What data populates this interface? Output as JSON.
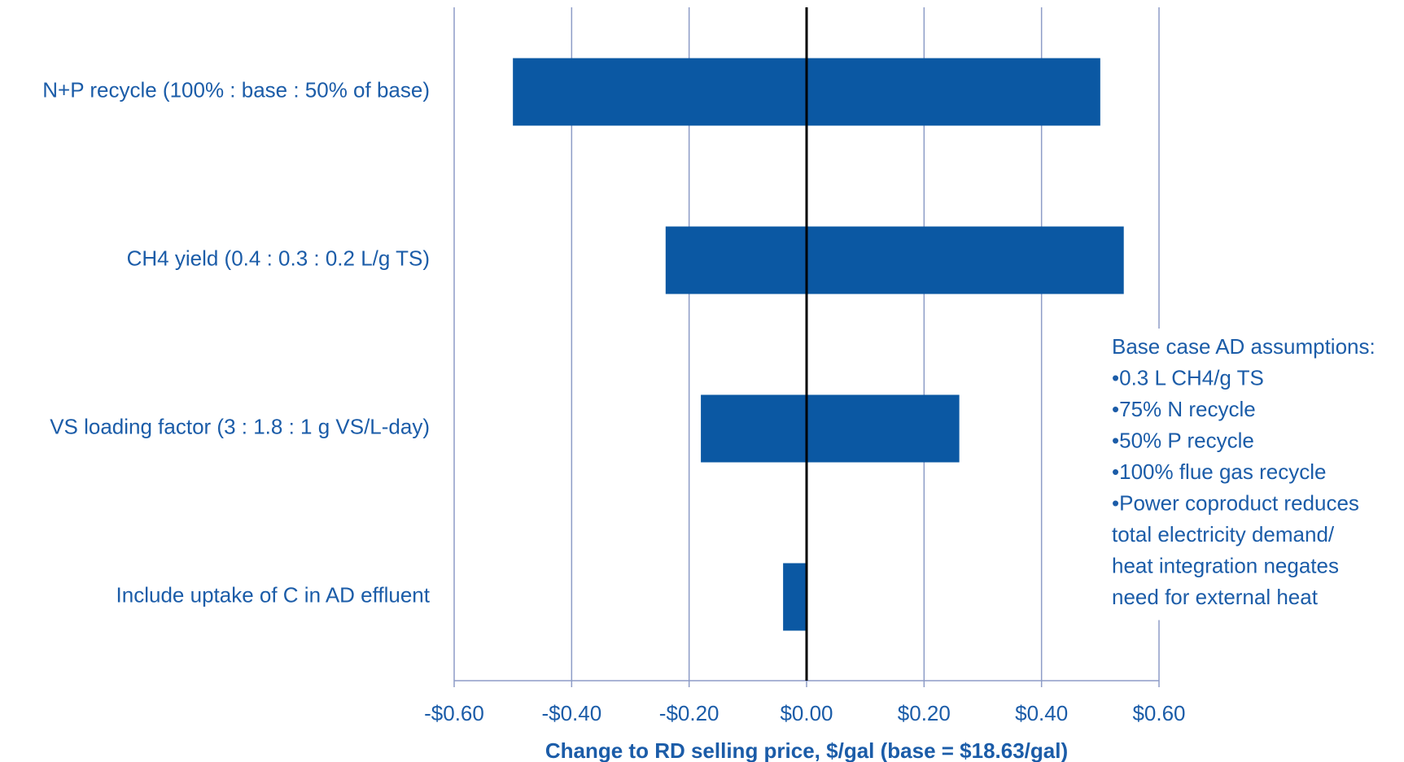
{
  "chart_data": {
    "type": "tornado",
    "categories": [
      "N+P recycle (100% : base : 50% of base)",
      "CH4 yield (0.4 : 0.3 : 0.2 L/g TS)",
      "VS loading factor (3 : 1.8 : 1 g VS/L-day)",
      "Include uptake of C in AD effluent"
    ],
    "series": [
      {
        "color": "#0b58a3",
        "values": [
          -0.5,
          -0.24,
          -0.18,
          -0.04
        ]
      },
      {
        "color": "#0b58a3",
        "values": [
          0.5,
          0.54,
          0.26,
          null
        ]
      }
    ],
    "xlabel": "Change to RD selling price, $/gal  (base = $18.63/gal)",
    "xlim": [
      -0.6,
      0.6
    ],
    "xticks": [
      {
        "value": -0.6,
        "label": "-$0.60"
      },
      {
        "value": -0.4,
        "label": "-$0.40"
      },
      {
        "value": -0.2,
        "label": "-$0.20"
      },
      {
        "value": 0,
        "label": "$0.00"
      },
      {
        "value": 0.2,
        "label": "$0.20"
      },
      {
        "value": 0.4,
        "label": "$0.40"
      },
      {
        "value": 0.6,
        "label": "$0.60"
      }
    ],
    "grid": true,
    "annotation": [
      "Base case AD assumptions:",
      "•0.3 L CH4/g TS",
      "•75% N recycle",
      "•50% P recycle",
      "•100% flue gas recycle",
      "•Power coproduct reduces",
      "total electricity demand/",
      "heat integration negates",
      "need for external heat"
    ]
  }
}
